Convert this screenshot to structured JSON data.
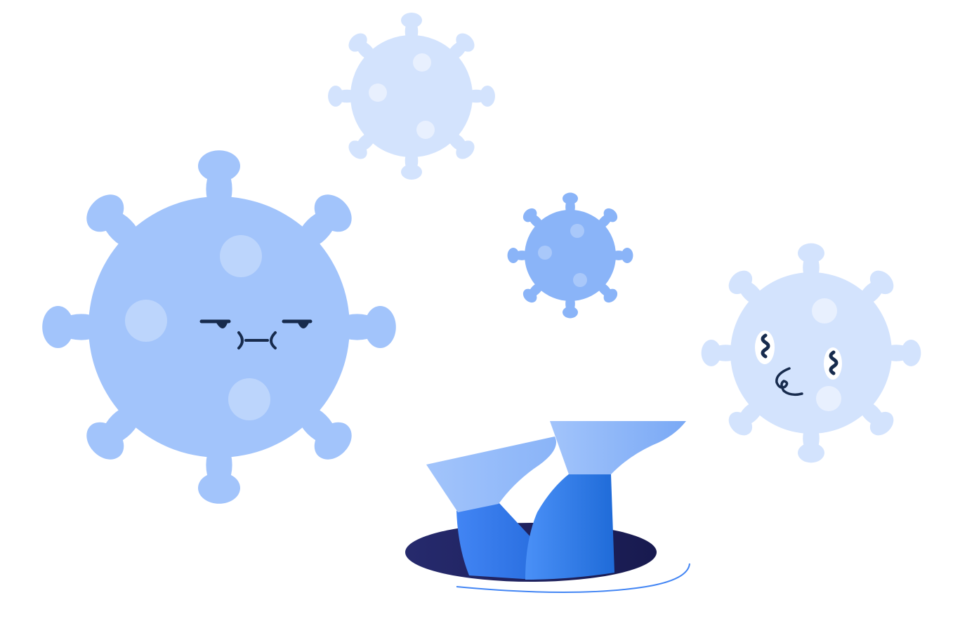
{
  "colors": {
    "background": "#ffffff",
    "virus_large": "#a2c4fb",
    "virus_large_spot": "#bcd5fc",
    "virus_pale": "#d3e3fd",
    "virus_pale_spot": "#e8f0fe",
    "virus_small": "#8ab4f8",
    "virus_small_spot": "#a9c8fa",
    "face_dark": "#172b4d",
    "hole": "#1f2160",
    "shoe": "#a2c4fb",
    "leg": "#4285f4",
    "water_line": "#4285f4"
  },
  "scene": {
    "elements": [
      "grumpy-virus",
      "pale-virus-top",
      "small-virus-middle",
      "worried-virus-right",
      "legs-in-hole"
    ]
  }
}
